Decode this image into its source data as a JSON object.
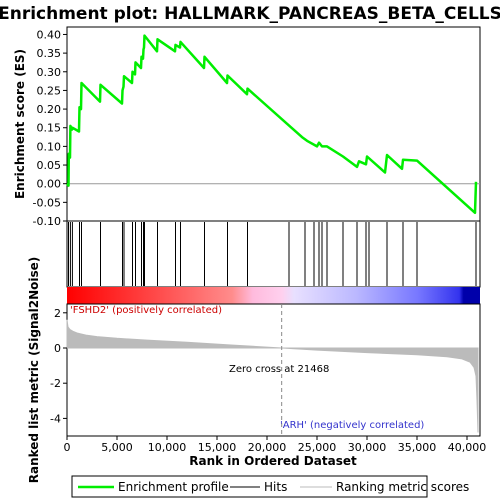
{
  "colors": {
    "profile": "#00ee00",
    "hit": "#000000",
    "metric": "#bbbbbb",
    "pos_label": "#cc0000",
    "neg_label": "#3333cc",
    "zero_line": "#999999",
    "panel_border": "#000000"
  },
  "chart_data": [
    {
      "type": "line",
      "title": "Enrichment plot: HALLMARK_PANCREAS_BETA_CELLS",
      "ylabel": "Enrichment score (ES)",
      "xlim": [
        0,
        41300
      ],
      "ylim": [
        -0.1,
        0.42
      ],
      "y_ticks": [
        -0.1,
        -0.05,
        0.0,
        0.05,
        0.1,
        0.15,
        0.2,
        0.25,
        0.3,
        0.35,
        0.4
      ],
      "y_tick_labels": [
        "-0.10",
        "-0.05",
        "0.00",
        "0.05",
        "0.10",
        "0.15",
        "0.20",
        "0.25",
        "0.30",
        "0.35",
        "0.40"
      ],
      "series": [
        {
          "name": "Enrichment profile",
          "x": [
            0,
            150,
            180,
            300,
            340,
            500,
            540,
            1200,
            1250,
            1400,
            1450,
            3300,
            3350,
            5500,
            5550,
            5650,
            5700,
            6500,
            6550,
            6800,
            6850,
            7400,
            7450,
            7600,
            7650,
            7700,
            7750,
            9000,
            9050,
            10800,
            10850,
            11300,
            11350,
            13700,
            13750,
            16000,
            16050,
            18000,
            18050,
            23500,
            24000,
            25000,
            25200,
            25500,
            26000,
            27600,
            29000,
            29200,
            29900,
            30000,
            31800,
            32000,
            33500,
            33600,
            35000,
            40800,
            40900
          ],
          "y": [
            0.0,
            -0.005,
            0.08,
            0.07,
            0.155,
            0.145,
            0.15,
            0.14,
            0.205,
            0.2,
            0.27,
            0.22,
            0.265,
            0.215,
            0.25,
            0.26,
            0.288,
            0.27,
            0.3,
            0.293,
            0.325,
            0.31,
            0.34,
            0.335,
            0.36,
            0.365,
            0.397,
            0.355,
            0.387,
            0.355,
            0.372,
            0.365,
            0.38,
            0.31,
            0.34,
            0.27,
            0.29,
            0.24,
            0.255,
            0.125,
            0.115,
            0.1,
            0.11,
            0.1,
            0.1,
            0.073,
            0.045,
            0.06,
            0.052,
            0.073,
            0.03,
            0.077,
            0.04,
            0.064,
            0.062,
            -0.078,
            0.005
          ]
        }
      ]
    },
    {
      "type": "line",
      "name": "hits",
      "x_hits": [
        150,
        340,
        540,
        1250,
        1450,
        3350,
        5550,
        5700,
        6550,
        6850,
        7450,
        7650,
        7750,
        9050,
        10850,
        11350,
        13750,
        16050,
        18050,
        22200,
        23800,
        24700,
        25200,
        25500,
        26000,
        27600,
        29000,
        29900,
        30200,
        32000,
        33600,
        35000,
        40900
      ]
    },
    {
      "type": "area",
      "ylabel": "Ranked list metric (Signal2Noise)",
      "xlabel": "Rank in Ordered Dataset",
      "xlim": [
        0,
        41300
      ],
      "ylim": [
        -5,
        2.5
      ],
      "x_ticks": [
        0,
        5000,
        10000,
        15000,
        20000,
        25000,
        30000,
        35000,
        40000
      ],
      "x_tick_labels": [
        "0",
        "5,000",
        "10,000",
        "15,000",
        "20,000",
        "25,000",
        "30,000",
        "35,000",
        "40,000"
      ],
      "y_ticks": [
        2,
        0,
        -2,
        -4
      ],
      "y_tick_labels": [
        "2",
        "0",
        "-2",
        "-4"
      ],
      "x": [
        0,
        100,
        300,
        600,
        1000,
        2000,
        3000,
        5000,
        8000,
        12000,
        16000,
        21468,
        25000,
        30000,
        35000,
        38000,
        39500,
        40300,
        40700,
        40900,
        41000,
        41100
      ],
      "values": [
        1.6,
        1.2,
        1.05,
        0.95,
        0.85,
        0.72,
        0.65,
        0.55,
        0.45,
        0.33,
        0.18,
        0.0,
        -0.12,
        -0.26,
        -0.38,
        -0.5,
        -0.62,
        -0.8,
        -1.1,
        -1.6,
        -3.0,
        -4.8
      ],
      "annotations": {
        "pos": "'FSHD2' (positively correlated)",
        "neg": "'ARH' (negatively correlated)",
        "zero": "Zero cross at 21468"
      },
      "zero_cross": 21468
    }
  ],
  "legend": {
    "items": [
      {
        "label": "Enrichment profile"
      },
      {
        "label": "Hits"
      },
      {
        "label": "Ranking metric scores"
      }
    ]
  }
}
